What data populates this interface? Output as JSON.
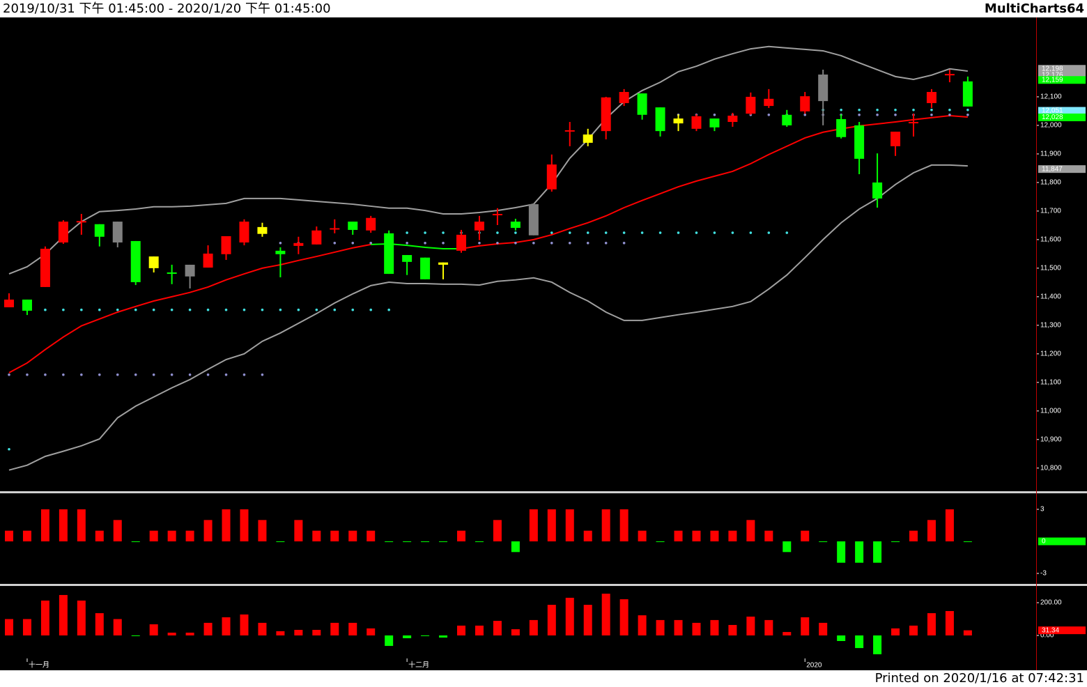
{
  "header": {
    "range": "2019/10/31 下午 01:45:00 - 2020/1/20 下午 01:45:00",
    "brand": "MultiCharts64"
  },
  "footer": "Printed on 2020/1/16 at 07:42:31",
  "chart_data": [
    {
      "type": "candlestick",
      "categories": [
        null,
        "十一月",
        null,
        null,
        null,
        null,
        null,
        null,
        null,
        null,
        null,
        null,
        null,
        null,
        null,
        null,
        null,
        null,
        null,
        null,
        null,
        null,
        "十二月",
        null,
        null,
        null,
        null,
        null,
        null,
        null,
        null,
        null,
        null,
        null,
        null,
        null,
        null,
        null,
        null,
        null,
        null,
        null,
        null,
        null,
        "2020",
        null,
        null,
        null,
        null,
        null,
        null,
        null,
        null,
        null
      ],
      "open": [
        11363,
        11390,
        11434,
        11590,
        11660,
        11654,
        11663,
        11595,
        11541,
        11485,
        11512,
        11502,
        11549,
        11590,
        11644,
        11561,
        11578,
        11583,
        11637,
        11663,
        11632,
        11622,
        11546,
        11537,
        11520,
        11561,
        11632,
        11688,
        11663,
        11724,
        11776,
        11981,
        11968,
        11980,
        12078,
        12112,
        12063,
        12024,
        11988,
        12024,
        12012,
        12041,
        12068,
        12037,
        12049,
        12178,
        12022,
        12000,
        11800,
        11927,
        12010,
        12078,
        12178,
        12154
      ],
      "high": [
        11412,
        11390,
        11576,
        11668,
        11690,
        11654,
        11663,
        11595,
        11541,
        11512,
        11512,
        11580,
        11612,
        11671,
        11659,
        11573,
        11610,
        11646,
        11671,
        11663,
        11683,
        11632,
        11546,
        11537,
        11520,
        11634,
        11683,
        11710,
        11673,
        11727,
        11898,
        12012,
        11988,
        12100,
        12127,
        12112,
        12063,
        12039,
        12039,
        12024,
        12044,
        12115,
        12127,
        12054,
        12117,
        12195,
        12039,
        12012,
        11902,
        11978,
        12041,
        12127,
        12195,
        12171
      ],
      "low": [
        11363,
        11336,
        11434,
        11585,
        11617,
        11576,
        11573,
        11441,
        11485,
        11444,
        11429,
        11502,
        11529,
        11580,
        11610,
        11468,
        11549,
        11583,
        11622,
        11617,
        11624,
        11480,
        11476,
        11461,
        11461,
        11554,
        11598,
        11651,
        11632,
        11615,
        11768,
        11927,
        11927,
        11951,
        12068,
        12020,
        11961,
        11980,
        11980,
        11980,
        11995,
        12037,
        12061,
        11995,
        12041,
        12000,
        11954,
        11829,
        11712,
        11893,
        11961,
        12061,
        12151,
        12066
      ],
      "close": [
        11390,
        11351,
        11568,
        11663,
        11665,
        11610,
        11590,
        11451,
        11500,
        11482,
        11471,
        11551,
        11612,
        11663,
        11620,
        11549,
        11588,
        11632,
        11640,
        11634,
        11676,
        11480,
        11522,
        11461,
        11512,
        11617,
        11663,
        11690,
        11641,
        11615,
        11863,
        11983,
        11939,
        12098,
        12117,
        12037,
        11980,
        12007,
        12032,
        11993,
        12034,
        12100,
        12093,
        12000,
        12102,
        12085,
        11959,
        11883,
        11744,
        11978,
        12012,
        12117,
        12180,
        12066
      ],
      "colors": [
        "#ff0000",
        "#00ff00",
        "#ff0000",
        "#ff0000",
        "#ff0000",
        "#00ff00",
        "#808080",
        "#00ff00",
        "#ffff00",
        "#00ff00",
        "#808080",
        "#ff0000",
        "#ff0000",
        "#ff0000",
        "#ffff00",
        "#00ff00",
        "#ff0000",
        "#ff0000",
        "#ff0000",
        "#00ff00",
        "#ff0000",
        "#00ff00",
        "#00ff00",
        "#00ff00",
        "#ffff00",
        "#ff0000",
        "#ff0000",
        "#ff0000",
        "#00ff00",
        "#808080",
        "#ff0000",
        "#ff0000",
        "#ffff00",
        "#ff0000",
        "#ff0000",
        "#00ff00",
        "#00ff00",
        "#ffff00",
        "#ff0000",
        "#00ff00",
        "#ff0000",
        "#ff0000",
        "#ff0000",
        "#00ff00",
        "#ff0000",
        "#808080",
        "#00ff00",
        "#00ff00",
        "#00ff00",
        "#ff0000",
        "#ff0000",
        "#ff0000",
        "#ff0000",
        "#00ff00"
      ],
      "bands": [
        {
          "color": "#a0a0a0",
          "values": [
            11480,
            11505,
            11549,
            11610,
            11663,
            11698,
            11702,
            11707,
            11715,
            11715,
            11717,
            11722,
            11727,
            11744,
            11744,
            11744,
            11739,
            11734,
            11729,
            11724,
            11717,
            11710,
            11710,
            11702,
            11690,
            11690,
            11695,
            11702,
            11712,
            11724,
            11795,
            11885,
            11951,
            12024,
            12083,
            12122,
            12151,
            12188,
            12207,
            12232,
            12251,
            12268,
            12276,
            12271,
            12266,
            12261,
            12244,
            12219,
            12195,
            12171,
            12161,
            12176,
            12198,
            12190
          ]
        },
        {
          "color": "#a0a0a0",
          "values": [
            10793,
            10810,
            10841,
            10859,
            10878,
            10902,
            10976,
            11017,
            11049,
            11081,
            11110,
            11146,
            11180,
            11200,
            11244,
            11273,
            11307,
            11341,
            11378,
            11410,
            11439,
            11451,
            11446,
            11446,
            11444,
            11444,
            11441,
            11454,
            11459,
            11466,
            11451,
            11415,
            11385,
            11346,
            11317,
            11317,
            11327,
            11337,
            11346,
            11356,
            11366,
            11383,
            11427,
            11476,
            11537,
            11600,
            11659,
            11707,
            11744,
            11793,
            11834,
            11861,
            11861,
            11858
          ]
        }
      ],
      "middle": {
        "values": [
          11134,
          11168,
          11215,
          11259,
          11298,
          11322,
          11346,
          11366,
          11385,
          11400,
          11415,
          11434,
          11459,
          11480,
          11500,
          11512,
          11527,
          11541,
          11556,
          11571,
          11583,
          11585,
          11580,
          11573,
          11568,
          11568,
          11578,
          11585,
          11590,
          11600,
          11617,
          11639,
          11659,
          11683,
          11712,
          11737,
          11761,
          11785,
          11805,
          11822,
          11839,
          11866,
          11898,
          11927,
          11956,
          11976,
          11988,
          11998,
          12005,
          12012,
          12020,
          12027,
          12034,
          12029
        ],
        "colors": [
          "#ff0000",
          "#ff0000",
          "#ff0000",
          "#ff0000",
          "#ff0000",
          "#ff0000",
          "#ff0000",
          "#ff0000",
          "#ff0000",
          "#ff0000",
          "#ff0000",
          "#ff0000",
          "#ff0000",
          "#ff0000",
          "#ff0000",
          "#ff0000",
          "#ff0000",
          "#ff0000",
          "#ff0000",
          "#ff0000",
          "#ff0000",
          "#00ff00",
          "#00ff00",
          "#00ff00",
          "#00ff00",
          "#00ff00",
          "#ff0000",
          "#ff0000",
          "#ff0000",
          "#ff0000",
          "#ff0000",
          "#ff0000",
          "#ff0000",
          "#ff0000",
          "#ff0000",
          "#ff0000",
          "#ff0000",
          "#ff0000",
          "#ff0000",
          "#ff0000",
          "#ff0000",
          "#ff0000",
          "#ff0000",
          "#ff0000",
          "#ff0000",
          "#ff0000",
          "#ff0000",
          "#ff0000",
          "#ff0000",
          "#ff0000",
          "#ff0000",
          "#ff0000",
          "#ff0000",
          "#ff0000"
        ]
      },
      "dots": [
        {
          "color": "#40e0e0",
          "values": [
            10866,
            11354,
            11354,
            11354,
            11354,
            11354,
            11354,
            11354,
            11354,
            11354,
            11354,
            11354,
            11354,
            11354,
            11354,
            11354,
            11354,
            11354,
            11354,
            11354,
            11354,
            11354,
            11624,
            11624,
            11624,
            11624,
            11624,
            11624,
            11624,
            11624,
            11624,
            11624,
            11624,
            11624,
            11624,
            11624,
            11624,
            11624,
            11624,
            11624,
            11624,
            11624,
            11624,
            11624,
            null,
            12054,
            12054,
            12054,
            12054,
            12054,
            12054,
            12054,
            12054,
            12054
          ]
        },
        {
          "color": "#9090d0",
          "values": [
            11127,
            11127,
            11127,
            11127,
            11127,
            11127,
            11127,
            11127,
            11127,
            11127,
            11127,
            11127,
            11127,
            11127,
            11127,
            11588,
            11588,
            11588,
            11588,
            11588,
            11588,
            11588,
            11588,
            11588,
            11588,
            11588,
            11588,
            11588,
            11588,
            11588,
            11588,
            11588,
            11588,
            11588,
            11588,
            null,
            null,
            12037,
            12037,
            12037,
            12037,
            12037,
            12037,
            12037,
            12037,
            12037,
            12037,
            12037,
            12037,
            12037,
            12037,
            12037,
            12037,
            12037
          ]
        }
      ],
      "ylim": [
        10719,
        12378
      ],
      "yticks": [
        {
          "value": 10800,
          "label": "10,800"
        },
        {
          "value": 10900,
          "label": "10,900"
        },
        {
          "value": 11000,
          "label": "11,000"
        },
        {
          "value": 11100,
          "label": "11,100"
        },
        {
          "value": 11200,
          "label": "11,200"
        },
        {
          "value": 11300,
          "label": "11,300"
        },
        {
          "value": 11400,
          "label": "11,400"
        },
        {
          "value": 11500,
          "label": "11,500"
        },
        {
          "value": 11600,
          "label": "11,600"
        },
        {
          "value": 11700,
          "label": "11,700"
        },
        {
          "value": 11800,
          "label": "11,800"
        },
        {
          "value": 11900,
          "label": "11,900"
        },
        {
          "value": 12000,
          "label": "12,000"
        },
        {
          "value": 12100,
          "label": "12,100"
        }
      ],
      "markers": [
        {
          "value": 12198,
          "label": "12,198",
          "color": "#a0a0a0"
        },
        {
          "value": 12176,
          "label": "12,176",
          "color": "#a0a0a0"
        },
        {
          "value": 12159,
          "label": "12,159",
          "color": "#00ff00"
        },
        {
          "value": 12051,
          "label": "12,051",
          "color": "#80e8ff"
        },
        {
          "value": 12028,
          "label": "12,028",
          "color": "#00ff00"
        },
        {
          "value": 11847,
          "label": "11,847",
          "color": "#a0a0a0"
        }
      ]
    },
    {
      "type": "bar",
      "values": [
        1,
        1,
        3,
        3,
        3,
        1,
        2,
        0,
        1,
        1,
        1,
        2,
        3,
        3,
        2,
        0,
        2,
        1,
        1,
        1,
        1,
        0,
        0,
        0,
        0,
        1,
        0,
        2,
        -1,
        3,
        3,
        3,
        1,
        3,
        3,
        1,
        0,
        1,
        1,
        1,
        1,
        2,
        1,
        -1,
        1,
        0,
        -2,
        -2,
        -2,
        0,
        1,
        2,
        3,
        0
      ],
      "up_color": "#ff0000",
      "down_color": "#00ff00",
      "ylim": [
        -3.98,
        4.37
      ],
      "yticks": [
        3,
        -3
      ],
      "markers": [
        {
          "value": 0,
          "color": "#00ff00"
        }
      ]
    },
    {
      "type": "bar",
      "values": [
        100,
        100,
        213,
        247,
        213,
        136,
        100,
        0,
        68,
        17,
        17,
        77,
        111,
        128,
        77,
        26,
        34,
        34,
        77,
        77,
        43,
        -64,
        -17,
        -3,
        -13,
        60,
        60,
        89,
        38,
        94,
        187,
        230,
        187,
        255,
        221,
        123,
        94,
        94,
        77,
        94,
        64,
        115,
        94,
        21,
        111,
        77,
        -34,
        -77,
        -115,
        43,
        60,
        136,
        149,
        31.34
      ],
      "up_color": "#ff0000",
      "down_color": "#00ff00",
      "ylim": [
        -140.4,
        293.6
      ],
      "yticks": [
        {
          "value": 200,
          "label": "200.00"
        },
        {
          "value": 0,
          "label": "0.00"
        }
      ],
      "markers": [
        {
          "value": 31.34,
          "color": "#ff0000"
        }
      ]
    }
  ]
}
